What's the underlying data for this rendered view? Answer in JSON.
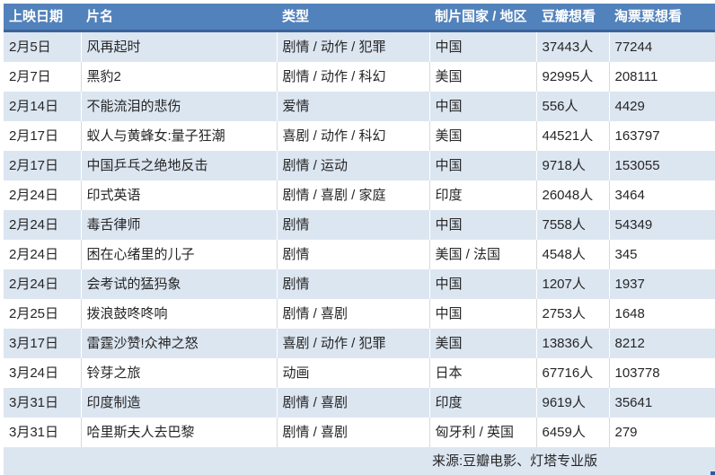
{
  "chart_data": {
    "type": "table",
    "title": "",
    "columns": [
      "上映日期",
      "片名",
      "类型",
      "制片国家 / 地区",
      "豆瓣想看",
      "淘票票想看"
    ],
    "rows": [
      [
        "2月5日",
        "风再起时",
        "剧情 / 动作 / 犯罪",
        "中国",
        "37443人",
        "77244"
      ],
      [
        "2月7日",
        "黑豹2",
        "剧情 / 动作 / 科幻",
        "美国",
        "92995人",
        "208111"
      ],
      [
        "2月14日",
        "不能流泪的悲伤",
        "爱情",
        "中国",
        "556人",
        "4429"
      ],
      [
        "2月17日",
        "蚁人与黄蜂女:量子狂潮",
        "喜剧 / 动作 / 科幻",
        "美国",
        "44521人",
        "163797"
      ],
      [
        "2月17日",
        "中国乒乓之绝地反击",
        "剧情 / 运动",
        "中国",
        "9718人",
        "153055"
      ],
      [
        "2月24日",
        "印式英语",
        "剧情 / 喜剧 / 家庭",
        "印度",
        "26048人",
        "3464"
      ],
      [
        "2月24日",
        "毒舌律师",
        "剧情",
        "中国",
        "7558人",
        "54349"
      ],
      [
        "2月24日",
        "困在心绪里的儿子",
        "剧情",
        "美国 / 法国",
        "4548人",
        "345"
      ],
      [
        "2月24日",
        "会考试的猛犸象",
        "剧情",
        "中国",
        "1207人",
        "1937"
      ],
      [
        "2月25日",
        "拨浪鼓咚咚响",
        "剧情 / 喜剧",
        "中国",
        "2753人",
        "1648"
      ],
      [
        "3月17日",
        "雷霆沙赞!众神之怒",
        "喜剧 / 动作 / 犯罪",
        "美国",
        "13836人",
        "8212"
      ],
      [
        "3月24日",
        "铃芽之旅",
        "动画",
        "日本",
        "67716人",
        "103778"
      ],
      [
        "3月31日",
        "印度制造",
        "剧情 / 喜剧",
        "印度",
        "9619人",
        "35641"
      ],
      [
        "3月31日",
        "哈里斯夫人去巴黎",
        "剧情 / 喜剧",
        "匈牙利 / 英国",
        "6459人",
        "279"
      ]
    ],
    "source_note": "来源:豆瓣电影、灯塔专业版",
    "legend_position": "none",
    "grid": "banded-rows"
  },
  "colors": {
    "header_bg": "#5282BB",
    "header_text": "#FFFFFF",
    "header_border": "#3A639B",
    "band_row_bg": "#DCE6F1",
    "plain_row_bg": "#FFFFFF",
    "gridline": "#D9D9D9",
    "body_text": "#262626",
    "corner_mark": "#2E5B9F"
  }
}
